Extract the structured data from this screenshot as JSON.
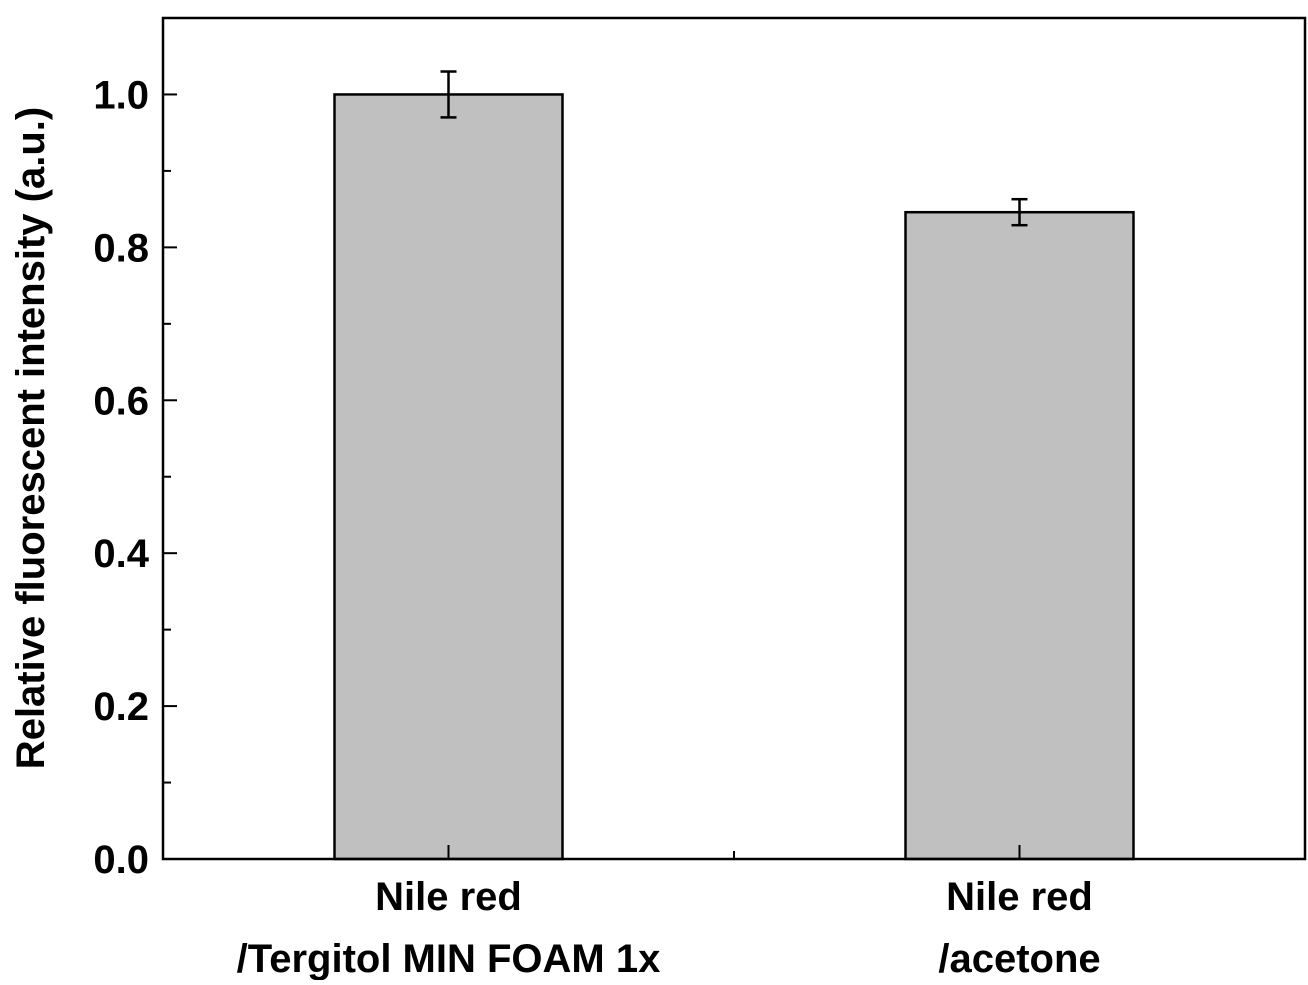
{
  "chart_data": {
    "type": "bar",
    "title": "",
    "xlabel": "",
    "ylabel": "Relative fluorescent intensity (a.u.)",
    "ylim": [
      0,
      1.1
    ],
    "yticks": [
      {
        "value": 0.0,
        "label": "0.0"
      },
      {
        "value": 0.2,
        "label": "0.2"
      },
      {
        "value": 0.4,
        "label": "0.4"
      },
      {
        "value": 0.6,
        "label": "0.6"
      },
      {
        "value": 0.8,
        "label": "0.8"
      },
      {
        "value": 1.0,
        "label": "1.0"
      }
    ],
    "y_minor_step": 0.1,
    "grid": false,
    "categories": [
      {
        "lines": [
          "Nile red",
          "/Tergitol MIN FOAM 1x"
        ]
      },
      {
        "lines": [
          "Nile red",
          "/acetone"
        ]
      }
    ],
    "series": [
      {
        "values": [
          1.0,
          0.846
        ],
        "errors": [
          0.03,
          0.017
        ],
        "color": "#c0c0c0",
        "edge_color": "#000000"
      }
    ]
  }
}
